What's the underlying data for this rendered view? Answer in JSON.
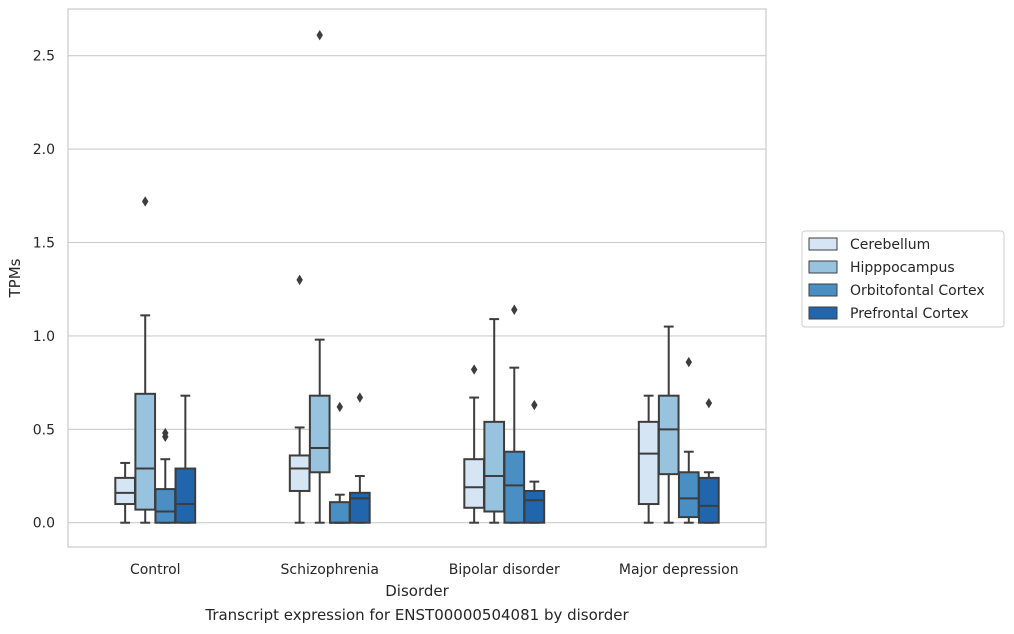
{
  "caption": "Transcript expression for ENST00000504081 by disorder",
  "chart_data": {
    "type": "boxplot",
    "xlabel": "Disorder",
    "ylabel": "TPMs",
    "categories": [
      "Control",
      "Schizophrenia",
      "Bipolar disorder",
      "Major depression"
    ],
    "ylim": [
      -0.13,
      2.75
    ],
    "yticks": [
      0.0,
      0.5,
      1.0,
      1.5,
      2.0,
      2.5
    ],
    "ytick_labels": [
      "0.0",
      "0.5",
      "1.0",
      "1.5",
      "2.0",
      "2.5"
    ],
    "grid": true,
    "legend_position": "right",
    "series": [
      {
        "name": "Cerebellum",
        "color": "#d6e5f4",
        "boxes": [
          {
            "whislo": 0.0,
            "q1": 0.1,
            "med": 0.16,
            "q3": 0.24,
            "whishi": 0.32,
            "fliers": []
          },
          {
            "whislo": 0.0,
            "q1": 0.17,
            "med": 0.29,
            "q3": 0.36,
            "whishi": 0.51,
            "fliers": [
              1.3
            ]
          },
          {
            "whislo": 0.0,
            "q1": 0.08,
            "med": 0.19,
            "q3": 0.34,
            "whishi": 0.67,
            "fliers": [
              0.82
            ]
          },
          {
            "whislo": 0.0,
            "q1": 0.1,
            "med": 0.37,
            "q3": 0.54,
            "whishi": 0.68,
            "fliers": []
          }
        ]
      },
      {
        "name": "Hipppocampus",
        "color": "#97c3df",
        "boxes": [
          {
            "whislo": 0.0,
            "q1": 0.07,
            "med": 0.29,
            "q3": 0.69,
            "whishi": 1.11,
            "fliers": [
              1.72
            ]
          },
          {
            "whislo": 0.0,
            "q1": 0.27,
            "med": 0.4,
            "q3": 0.68,
            "whishi": 0.98,
            "fliers": [
              2.61
            ]
          },
          {
            "whislo": 0.0,
            "q1": 0.06,
            "med": 0.25,
            "q3": 0.54,
            "whishi": 1.09,
            "fliers": []
          },
          {
            "whislo": 0.0,
            "q1": 0.26,
            "med": 0.5,
            "q3": 0.68,
            "whishi": 1.05,
            "fliers": []
          }
        ]
      },
      {
        "name": "Orbitofontal Cortex",
        "color": "#4a8fc3",
        "boxes": [
          {
            "whislo": 0.0,
            "q1": 0.0,
            "med": 0.06,
            "q3": 0.18,
            "whishi": 0.34,
            "fliers": [
              0.46,
              0.48
            ]
          },
          {
            "whislo": 0.0,
            "q1": 0.0,
            "med": 0.0,
            "q3": 0.11,
            "whishi": 0.15,
            "fliers": [
              0.62
            ]
          },
          {
            "whislo": 0.0,
            "q1": 0.0,
            "med": 0.2,
            "q3": 0.38,
            "whishi": 0.83,
            "fliers": [
              1.14
            ]
          },
          {
            "whislo": 0.0,
            "q1": 0.03,
            "med": 0.13,
            "q3": 0.27,
            "whishi": 0.38,
            "fliers": [
              0.86
            ]
          }
        ]
      },
      {
        "name": "Prefrontal Cortex",
        "color": "#2166ac",
        "boxes": [
          {
            "whislo": 0.0,
            "q1": 0.0,
            "med": 0.1,
            "q3": 0.29,
            "whishi": 0.68,
            "fliers": []
          },
          {
            "whislo": 0.0,
            "q1": 0.0,
            "med": 0.13,
            "q3": 0.16,
            "whishi": 0.25,
            "fliers": [
              0.67
            ]
          },
          {
            "whislo": 0.0,
            "q1": 0.0,
            "med": 0.12,
            "q3": 0.17,
            "whishi": 0.22,
            "fliers": [
              0.63
            ]
          },
          {
            "whislo": 0.0,
            "q1": 0.0,
            "med": 0.09,
            "q3": 0.24,
            "whishi": 0.27,
            "fliers": [
              0.64
            ]
          }
        ]
      }
    ]
  }
}
